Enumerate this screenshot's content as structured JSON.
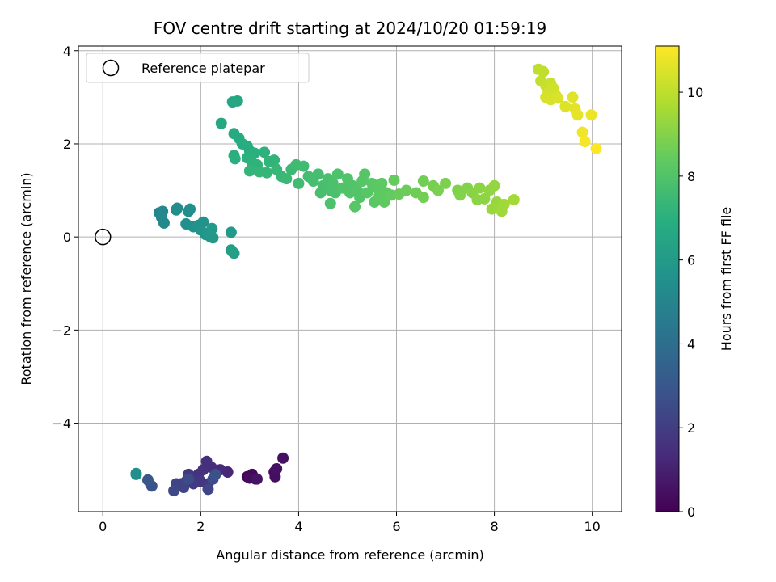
{
  "chart_data": {
    "type": "scatter",
    "title": "FOV centre drift starting at 2024/10/20 01:59:19",
    "xlabel": "Angular distance from reference (arcmin)",
    "ylabel": "Rotation from reference (arcmin)",
    "xlim": [
      -0.5,
      10.6
    ],
    "ylim": [
      -5.9,
      4.1
    ],
    "xticks": [
      0,
      2,
      4,
      6,
      8,
      10
    ],
    "yticks": [
      -4,
      -2,
      0,
      2,
      4
    ],
    "xtick_labels": [
      "0",
      "2",
      "4",
      "6",
      "8",
      "10"
    ],
    "ytick_labels": [
      "−4",
      "−2",
      "0",
      "2",
      "4"
    ],
    "grid": true,
    "legend": {
      "placement": "top-left",
      "entries": [
        {
          "label": "Reference platepar",
          "marker": "open-circle"
        }
      ]
    },
    "reference_point": {
      "x": 0,
      "y": 0
    },
    "colorbar": {
      "label": "Hours from first FF file",
      "colormap": "viridis",
      "range": [
        0,
        11.1
      ],
      "ticks": [
        0,
        2,
        4,
        6,
        8,
        10
      ],
      "tick_labels": [
        "0",
        "2",
        "4",
        "6",
        "8",
        "10"
      ]
    },
    "points": [
      {
        "x": 2.95,
        "y": -5.15,
        "c": 0.1
      },
      {
        "x": 3.05,
        "y": -5.1,
        "c": 0.2
      },
      {
        "x": 3.12,
        "y": -5.2,
        "c": 0.25
      },
      {
        "x": 3.0,
        "y": -5.18,
        "c": 0.3
      },
      {
        "x": 3.5,
        "y": -5.05,
        "c": 0.4
      },
      {
        "x": 3.52,
        "y": -5.15,
        "c": 0.45
      },
      {
        "x": 3.55,
        "y": -4.98,
        "c": 0.5
      },
      {
        "x": 3.68,
        "y": -4.75,
        "c": 0.55
      },
      {
        "x": 3.15,
        "y": -5.2,
        "c": 0.6
      },
      {
        "x": 2.55,
        "y": -5.05,
        "c": 1.2
      },
      {
        "x": 2.4,
        "y": -5.0,
        "c": 1.3
      },
      {
        "x": 2.22,
        "y": -4.95,
        "c": 1.4
      },
      {
        "x": 2.12,
        "y": -4.82,
        "c": 1.5
      },
      {
        "x": 2.05,
        "y": -5.0,
        "c": 1.55
      },
      {
        "x": 1.95,
        "y": -5.1,
        "c": 1.6
      },
      {
        "x": 1.8,
        "y": -5.15,
        "c": 1.7
      },
      {
        "x": 1.75,
        "y": -5.1,
        "c": 1.75
      },
      {
        "x": 2.0,
        "y": -5.25,
        "c": 1.8
      },
      {
        "x": 2.15,
        "y": -5.3,
        "c": 1.85
      },
      {
        "x": 1.85,
        "y": -5.3,
        "c": 1.9
      },
      {
        "x": 1.7,
        "y": -5.25,
        "c": 2.0
      },
      {
        "x": 1.6,
        "y": -5.3,
        "c": 2.1
      },
      {
        "x": 1.55,
        "y": -5.35,
        "c": 2.15
      },
      {
        "x": 1.5,
        "y": -5.3,
        "c": 2.2
      },
      {
        "x": 1.65,
        "y": -5.38,
        "c": 2.25
      },
      {
        "x": 2.15,
        "y": -5.42,
        "c": 2.3
      },
      {
        "x": 1.45,
        "y": -5.45,
        "c": 2.4
      },
      {
        "x": 1.75,
        "y": -5.2,
        "c": 2.5
      },
      {
        "x": 2.25,
        "y": -5.2,
        "c": 2.6
      },
      {
        "x": 2.3,
        "y": -5.1,
        "c": 2.7
      },
      {
        "x": 1.0,
        "y": -5.35,
        "c": 2.8
      },
      {
        "x": 0.92,
        "y": -5.22,
        "c": 3.0
      },
      {
        "x": 0.68,
        "y": -5.08,
        "c": 5.4
      },
      {
        "x": 0.68,
        "y": -5.1,
        "c": 5.45
      },
      {
        "x": 1.15,
        "y": 0.52,
        "c": 5.0
      },
      {
        "x": 1.2,
        "y": 0.42,
        "c": 5.1
      },
      {
        "x": 1.25,
        "y": 0.3,
        "c": 5.15
      },
      {
        "x": 1.22,
        "y": 0.55,
        "c": 5.2
      },
      {
        "x": 1.5,
        "y": 0.58,
        "c": 5.3
      },
      {
        "x": 1.52,
        "y": 0.62,
        "c": 5.35
      },
      {
        "x": 1.75,
        "y": 0.55,
        "c": 5.4
      },
      {
        "x": 1.78,
        "y": 0.6,
        "c": 5.45
      },
      {
        "x": 1.7,
        "y": 0.28,
        "c": 5.5
      },
      {
        "x": 1.85,
        "y": 0.22,
        "c": 5.55
      },
      {
        "x": 1.95,
        "y": 0.25,
        "c": 5.6
      },
      {
        "x": 2.05,
        "y": 0.32,
        "c": 5.65
      },
      {
        "x": 2.0,
        "y": 0.15,
        "c": 5.7
      },
      {
        "x": 2.1,
        "y": 0.05,
        "c": 5.75
      },
      {
        "x": 2.2,
        "y": 0.0,
        "c": 5.8
      },
      {
        "x": 2.15,
        "y": 0.08,
        "c": 5.85
      },
      {
        "x": 2.25,
        "y": -0.02,
        "c": 5.9
      },
      {
        "x": 2.23,
        "y": 0.18,
        "c": 5.95
      },
      {
        "x": 2.62,
        "y": 0.1,
        "c": 6.0
      },
      {
        "x": 2.62,
        "y": -0.28,
        "c": 6.1
      },
      {
        "x": 2.68,
        "y": -0.35,
        "c": 6.15
      },
      {
        "x": 2.65,
        "y": -0.32,
        "c": 6.2
      },
      {
        "x": 2.65,
        "y": 2.9,
        "c": 6.5
      },
      {
        "x": 2.75,
        "y": 2.92,
        "c": 6.55
      },
      {
        "x": 2.42,
        "y": 2.44,
        "c": 6.6
      },
      {
        "x": 2.68,
        "y": 2.22,
        "c": 6.7
      },
      {
        "x": 2.78,
        "y": 2.12,
        "c": 6.75
      },
      {
        "x": 2.85,
        "y": 2.0,
        "c": 6.8
      },
      {
        "x": 2.95,
        "y": 1.95,
        "c": 6.85
      },
      {
        "x": 3.0,
        "y": 1.85,
        "c": 6.9
      },
      {
        "x": 2.68,
        "y": 1.75,
        "c": 6.95
      },
      {
        "x": 2.7,
        "y": 1.68,
        "c": 7.0
      },
      {
        "x": 3.1,
        "y": 1.8,
        "c": 7.0
      },
      {
        "x": 2.95,
        "y": 1.7,
        "c": 7.05
      },
      {
        "x": 3.3,
        "y": 1.82,
        "c": 7.1
      },
      {
        "x": 3.05,
        "y": 1.6,
        "c": 7.1
      },
      {
        "x": 3.15,
        "y": 1.55,
        "c": 7.15
      },
      {
        "x": 3.4,
        "y": 1.62,
        "c": 7.2
      },
      {
        "x": 3.5,
        "y": 1.65,
        "c": 7.2
      },
      {
        "x": 3.0,
        "y": 1.42,
        "c": 7.25
      },
      {
        "x": 3.2,
        "y": 1.4,
        "c": 7.3
      },
      {
        "x": 3.35,
        "y": 1.38,
        "c": 7.3
      },
      {
        "x": 3.55,
        "y": 1.45,
        "c": 7.35
      },
      {
        "x": 3.65,
        "y": 1.3,
        "c": 7.4
      },
      {
        "x": 3.75,
        "y": 1.25,
        "c": 7.45
      },
      {
        "x": 3.85,
        "y": 1.45,
        "c": 7.5
      },
      {
        "x": 3.95,
        "y": 1.55,
        "c": 7.55
      },
      {
        "x": 4.1,
        "y": 1.52,
        "c": 7.6
      },
      {
        "x": 4.0,
        "y": 1.15,
        "c": 7.6
      },
      {
        "x": 4.2,
        "y": 1.3,
        "c": 7.65
      },
      {
        "x": 4.3,
        "y": 1.2,
        "c": 7.7
      },
      {
        "x": 4.4,
        "y": 1.35,
        "c": 7.7
      },
      {
        "x": 4.5,
        "y": 1.1,
        "c": 7.75
      },
      {
        "x": 4.45,
        "y": 0.95,
        "c": 7.75
      },
      {
        "x": 4.6,
        "y": 1.25,
        "c": 7.8
      },
      {
        "x": 4.65,
        "y": 1.0,
        "c": 7.8
      },
      {
        "x": 4.7,
        "y": 1.15,
        "c": 7.85
      },
      {
        "x": 4.75,
        "y": 0.95,
        "c": 7.85
      },
      {
        "x": 4.8,
        "y": 1.35,
        "c": 7.9
      },
      {
        "x": 4.65,
        "y": 0.72,
        "c": 7.9
      },
      {
        "x": 4.9,
        "y": 1.05,
        "c": 7.95
      },
      {
        "x": 5.0,
        "y": 1.25,
        "c": 7.95
      },
      {
        "x": 5.05,
        "y": 0.95,
        "c": 8.0
      },
      {
        "x": 5.1,
        "y": 1.1,
        "c": 8.0
      },
      {
        "x": 5.2,
        "y": 1.0,
        "c": 8.05
      },
      {
        "x": 5.25,
        "y": 0.85,
        "c": 8.05
      },
      {
        "x": 5.3,
        "y": 1.2,
        "c": 8.1
      },
      {
        "x": 5.35,
        "y": 1.35,
        "c": 8.1
      },
      {
        "x": 5.15,
        "y": 0.65,
        "c": 8.15
      },
      {
        "x": 5.4,
        "y": 0.95,
        "c": 8.15
      },
      {
        "x": 5.5,
        "y": 1.15,
        "c": 8.2
      },
      {
        "x": 5.55,
        "y": 0.75,
        "c": 8.2
      },
      {
        "x": 5.6,
        "y": 1.05,
        "c": 8.25
      },
      {
        "x": 5.65,
        "y": 0.9,
        "c": 8.3
      },
      {
        "x": 5.7,
        "y": 1.15,
        "c": 8.3
      },
      {
        "x": 5.75,
        "y": 0.75,
        "c": 8.35
      },
      {
        "x": 5.8,
        "y": 0.95,
        "c": 8.35
      },
      {
        "x": 5.9,
        "y": 0.9,
        "c": 8.4
      },
      {
        "x": 5.95,
        "y": 1.22,
        "c": 8.45
      },
      {
        "x": 6.05,
        "y": 0.92,
        "c": 8.5
      },
      {
        "x": 6.2,
        "y": 1.0,
        "c": 8.55
      },
      {
        "x": 6.4,
        "y": 0.95,
        "c": 8.6
      },
      {
        "x": 6.55,
        "y": 1.2,
        "c": 8.65
      },
      {
        "x": 6.55,
        "y": 0.85,
        "c": 8.7
      },
      {
        "x": 6.75,
        "y": 1.1,
        "c": 8.75
      },
      {
        "x": 6.85,
        "y": 1.0,
        "c": 8.8
      },
      {
        "x": 7.0,
        "y": 1.15,
        "c": 8.85
      },
      {
        "x": 7.25,
        "y": 1.0,
        "c": 8.9
      },
      {
        "x": 7.3,
        "y": 0.9,
        "c": 8.95
      },
      {
        "x": 7.45,
        "y": 1.05,
        "c": 9.0
      },
      {
        "x": 7.55,
        "y": 0.95,
        "c": 9.05
      },
      {
        "x": 7.65,
        "y": 0.8,
        "c": 9.1
      },
      {
        "x": 7.7,
        "y": 1.05,
        "c": 9.1
      },
      {
        "x": 7.8,
        "y": 0.82,
        "c": 9.15
      },
      {
        "x": 7.9,
        "y": 1.0,
        "c": 9.2
      },
      {
        "x": 8.0,
        "y": 1.1,
        "c": 9.25
      },
      {
        "x": 8.05,
        "y": 0.75,
        "c": 9.3
      },
      {
        "x": 7.95,
        "y": 0.6,
        "c": 9.35
      },
      {
        "x": 8.1,
        "y": 0.62,
        "c": 9.4
      },
      {
        "x": 8.15,
        "y": 0.55,
        "c": 9.45
      },
      {
        "x": 8.2,
        "y": 0.7,
        "c": 9.5
      },
      {
        "x": 8.4,
        "y": 0.8,
        "c": 9.55
      },
      {
        "x": 8.9,
        "y": 3.6,
        "c": 10.0
      },
      {
        "x": 9.0,
        "y": 3.55,
        "c": 10.05
      },
      {
        "x": 8.95,
        "y": 3.35,
        "c": 10.1
      },
      {
        "x": 9.05,
        "y": 3.25,
        "c": 10.15
      },
      {
        "x": 9.15,
        "y": 3.3,
        "c": 10.2
      },
      {
        "x": 9.1,
        "y": 3.1,
        "c": 10.25
      },
      {
        "x": 9.2,
        "y": 3.2,
        "c": 10.3
      },
      {
        "x": 9.25,
        "y": 3.05,
        "c": 10.35
      },
      {
        "x": 9.05,
        "y": 3.0,
        "c": 10.4
      },
      {
        "x": 9.15,
        "y": 2.95,
        "c": 10.45
      },
      {
        "x": 9.3,
        "y": 2.98,
        "c": 10.5
      },
      {
        "x": 9.45,
        "y": 2.8,
        "c": 10.55
      },
      {
        "x": 9.6,
        "y": 3.0,
        "c": 10.6
      },
      {
        "x": 9.65,
        "y": 2.75,
        "c": 10.65
      },
      {
        "x": 9.7,
        "y": 2.62,
        "c": 10.7
      },
      {
        "x": 9.98,
        "y": 2.62,
        "c": 10.8
      },
      {
        "x": 9.8,
        "y": 2.25,
        "c": 10.9
      },
      {
        "x": 9.85,
        "y": 2.05,
        "c": 11.0
      },
      {
        "x": 10.08,
        "y": 1.9,
        "c": 11.1
      }
    ]
  }
}
